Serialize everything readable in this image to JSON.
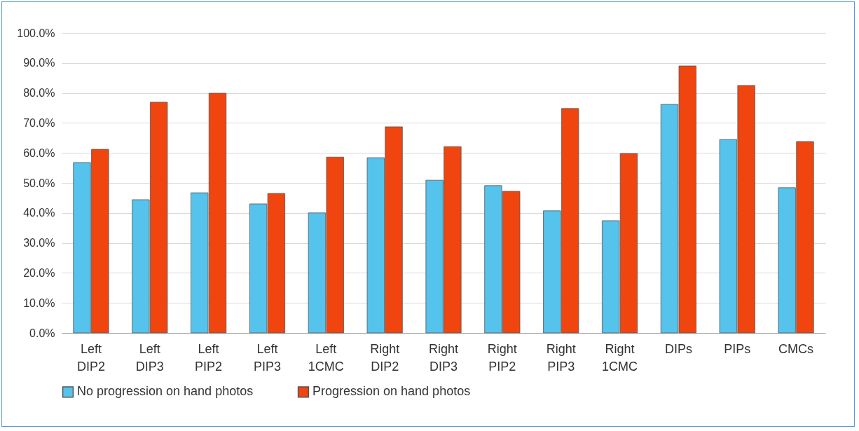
{
  "chart_data": {
    "type": "bar",
    "categories": [
      "Left DIP2",
      "Left DIP3",
      "Left PIP2",
      "Left PIP3",
      "Left 1CMC",
      "Right DIP2",
      "Right DIP3",
      "Right PIP2",
      "Right PIP3",
      "Right 1CMC",
      "DIPs",
      "PIPs",
      "CMCs"
    ],
    "series": [
      {
        "name": "No progression on hand photos",
        "color": "#55c3ec",
        "values": [
          56.8,
          44.4,
          46.7,
          43.0,
          40.0,
          58.4,
          50.9,
          49.1,
          40.7,
          37.4,
          76.2,
          64.5,
          48.4
        ]
      },
      {
        "name": "Progression on hand photos",
        "color": "#f0450f",
        "values": [
          61.2,
          76.9,
          79.9,
          46.5,
          58.6,
          68.7,
          62.1,
          47.2,
          74.8,
          59.8,
          89.0,
          82.5,
          63.8
        ]
      }
    ],
    "ylim": [
      0,
      100
    ],
    "yticks": [
      {
        "value": 0,
        "label": "0.0%"
      },
      {
        "value": 10,
        "label": "10.0%"
      },
      {
        "value": 20,
        "label": "20.0%"
      },
      {
        "value": 30,
        "label": "30.0%"
      },
      {
        "value": 40,
        "label": "40.0%"
      },
      {
        "value": 50,
        "label": "50.0%"
      },
      {
        "value": 60,
        "label": "60.0%"
      },
      {
        "value": 70,
        "label": "70.0%"
      },
      {
        "value": 80,
        "label": "80.0%"
      },
      {
        "value": 90,
        "label": "90.0%"
      },
      {
        "value": 100,
        "label": "100.0%"
      }
    ],
    "grid": "y",
    "legend": "bottom"
  }
}
